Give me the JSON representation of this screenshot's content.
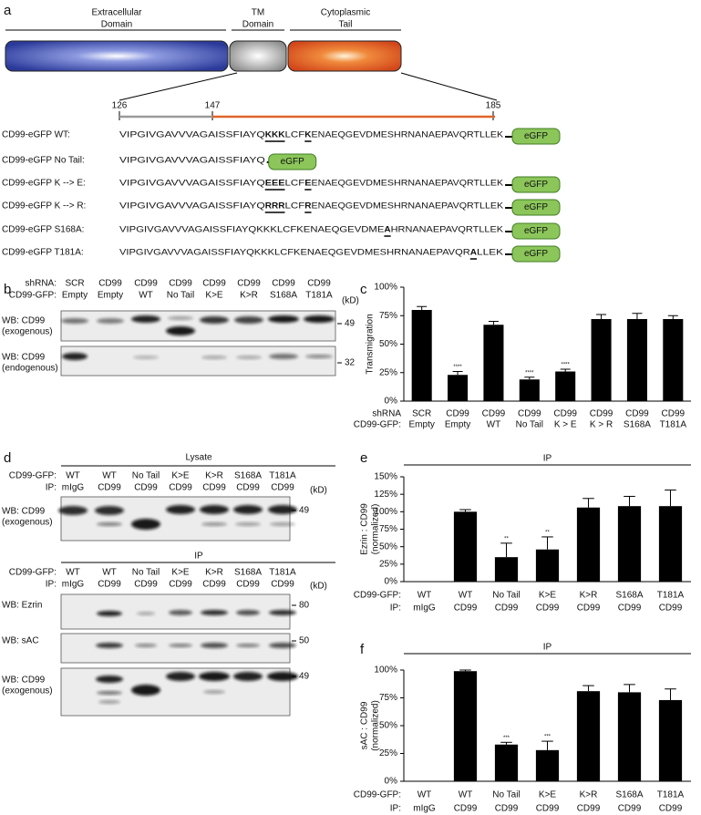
{
  "panel_a": {
    "letter": "a",
    "domains": [
      [
        "Extracellular",
        "Domain"
      ],
      [
        "TM",
        "Domain"
      ],
      [
        "Cytoplasmic",
        "Tail"
      ]
    ],
    "positions": [
      126,
      147,
      185
    ],
    "tag": "eGFP",
    "constructs": [
      {
        "label": "CD99-eGFP WT:",
        "segments": [
          {
            "text": "VIPGIVGAVVVAGAISSFIAYQ",
            "style": "plain"
          },
          {
            "text": "KKK",
            "style": "bold"
          },
          {
            "text": "LCF",
            "style": "plain"
          },
          {
            "text": "K",
            "style": "bold"
          },
          {
            "text": "ENAEQGEVDMESHRNANAEPAVQRTLLEK",
            "style": "plain"
          }
        ]
      },
      {
        "label": "CD99-eGFP No Tail:",
        "segments": [
          {
            "text": "VIPGIVGAVVVAGAISSFIAYQ",
            "style": "plain"
          }
        ]
      },
      {
        "label": "CD99-eGFP K --> E:",
        "segments": [
          {
            "text": "VIPGIVGAVVVAGAISSFIAYQ",
            "style": "plain"
          },
          {
            "text": "EEE",
            "style": "mutant"
          },
          {
            "text": "LCF",
            "style": "plain"
          },
          {
            "text": "E",
            "style": "mutant"
          },
          {
            "text": "ENAEQGEVDMESHRNANAEPAVQRTLLEK",
            "style": "plain"
          }
        ]
      },
      {
        "label": "CD99-eGFP K --> R:",
        "segments": [
          {
            "text": "VIPGIVGAVVVAGAISSFIAYQ",
            "style": "plain"
          },
          {
            "text": "RRR",
            "style": "mutant"
          },
          {
            "text": "LCF",
            "style": "plain"
          },
          {
            "text": "R",
            "style": "mutant"
          },
          {
            "text": "ENAEQGEVDMESHRNANAEPAVQRTLLEK",
            "style": "plain"
          }
        ]
      },
      {
        "label": "CD99-eGFP S168A:",
        "segments": [
          {
            "text": "VIPGIVGAVVVAGAISSFIAYQKKKLCFKENAEQGEVDME",
            "style": "plain"
          },
          {
            "text": "A",
            "style": "mutant"
          },
          {
            "text": "HRNANAEPAVQRTLLEK",
            "style": "plain"
          }
        ]
      },
      {
        "label": "CD99-eGFP T181A:",
        "segments": [
          {
            "text": "VIPGIVGAVVVAGAISSFIAYQKKKLCFKENAEQGEVDMESHRNANAEPAVQR",
            "style": "plain"
          },
          {
            "text": "A",
            "style": "mutant"
          },
          {
            "text": "LLEK",
            "style": "plain"
          }
        ]
      }
    ]
  },
  "panel_b": {
    "letter": "b",
    "row_labels": [
      "shRNA:",
      "CD99-GFP:"
    ],
    "lanes": [
      [
        "SCR",
        "Empty"
      ],
      [
        "CD99",
        "Empty"
      ],
      [
        "CD99",
        "WT"
      ],
      [
        "CD99",
        "No Tail"
      ],
      [
        "CD99",
        "K>E"
      ],
      [
        "CD99",
        "K>R"
      ],
      [
        "CD99",
        "S168A"
      ],
      [
        "CD99",
        "T181A"
      ]
    ],
    "marker_unit": "(kD)",
    "blots": [
      {
        "label": [
          "WB: CD99",
          "(exogenous)"
        ],
        "marker": 49
      },
      {
        "label": [
          "WB: CD99",
          "(endogenous)"
        ],
        "marker": 32
      }
    ]
  },
  "panel_d": {
    "letter": "d",
    "sections": [
      {
        "title": "Lysate",
        "row_labels": [
          "CD99-GFP:",
          "IP:"
        ],
        "marker_unit": "(kD)",
        "lanes": [
          [
            "WT",
            "mIgG"
          ],
          [
            "WT",
            "CD99"
          ],
          [
            "No Tail",
            "CD99"
          ],
          [
            "K>E",
            "CD99"
          ],
          [
            "K>R",
            "CD99"
          ],
          [
            "S168A",
            "CD99"
          ],
          [
            "T181A",
            "CD99"
          ]
        ],
        "blots": [
          {
            "label": [
              "WB: CD99",
              "(exogenous)"
            ],
            "marker": 49
          }
        ]
      },
      {
        "title": "IP",
        "row_labels": [
          "CD99-GFP:",
          "IP:"
        ],
        "marker_unit": "(kD)",
        "lanes": [
          [
            "WT",
            "mIgG"
          ],
          [
            "WT",
            "CD99"
          ],
          [
            "No Tail",
            "CD99"
          ],
          [
            "K>E",
            "CD99"
          ],
          [
            "K>R",
            "CD99"
          ],
          [
            "S168A",
            "CD99"
          ],
          [
            "T181A",
            "CD99"
          ]
        ],
        "blots": [
          {
            "label": [
              "WB: Ezrin"
            ],
            "marker": 80
          },
          {
            "label": [
              "WB: sAC"
            ],
            "marker": 50
          },
          {
            "label": [
              "WB: CD99",
              "(exogenous)"
            ],
            "marker": 49
          }
        ]
      }
    ]
  },
  "chart_data": [
    {
      "type": "bar",
      "panel_label": "c",
      "ylabel": [
        "Transmigration"
      ],
      "color": "#000000",
      "category_row_labels": [
        "shRNA",
        "CD99-GFP:"
      ],
      "categories": [
        [
          "SCR",
          "Empty"
        ],
        [
          "CD99",
          "Empty"
        ],
        [
          "CD99",
          "WT"
        ],
        [
          "CD99",
          "No Tail"
        ],
        [
          "CD99",
          "K > E"
        ],
        [
          "CD99",
          "K > R"
        ],
        [
          "CD99",
          "S168A"
        ],
        [
          "CD99",
          "T181A"
        ]
      ],
      "values": [
        80,
        23,
        67,
        19,
        26,
        72,
        72,
        72
      ],
      "errors": [
        3,
        3,
        3,
        2,
        2,
        4,
        5,
        3
      ],
      "significance": [
        null,
        "****",
        null,
        "****",
        "****",
        null,
        null,
        null
      ],
      "ylim": [
        0,
        100
      ],
      "yticks": [
        {
          "value": 0,
          "label": "0%"
        },
        {
          "value": 25,
          "label": "25%"
        },
        {
          "value": 50,
          "label": "50%"
        },
        {
          "value": 75,
          "label": "75%"
        },
        {
          "value": 100,
          "label": "100%"
        }
      ]
    },
    {
      "type": "bar",
      "panel_label": "e",
      "title": "IP",
      "ylabel": [
        "Ezrin : CD99",
        "(normalized)"
      ],
      "color": "#000000",
      "category_row_labels": [
        "CD99-GFP:",
        "IP:"
      ],
      "categories": [
        [
          "WT",
          "mIgG"
        ],
        [
          "WT",
          "CD99"
        ],
        [
          "No Tail",
          "CD99"
        ],
        [
          "K>E",
          "CD99"
        ],
        [
          "K>R",
          "CD99"
        ],
        [
          "S168A",
          "CD99"
        ],
        [
          "T181A",
          "CD99"
        ]
      ],
      "values": [
        0,
        100,
        35,
        46,
        106,
        108,
        108
      ],
      "errors": [
        0,
        3,
        20,
        18,
        13,
        14,
        23
      ],
      "significance": [
        null,
        null,
        "**",
        "**",
        null,
        null,
        null
      ],
      "ylim": [
        0,
        150
      ],
      "yticks": [
        {
          "value": 0,
          "label": "0%"
        },
        {
          "value": 25,
          "label": "25%"
        },
        {
          "value": 50,
          "label": "50%"
        },
        {
          "value": 75,
          "label": "75%"
        },
        {
          "value": 100,
          "label": "100%"
        },
        {
          "value": 125,
          "label": "125%"
        },
        {
          "value": 150,
          "label": "150%"
        }
      ]
    },
    {
      "type": "bar",
      "panel_label": "f",
      "title": "IP",
      "ylabel": [
        "sAC : CD99",
        "(normalized)"
      ],
      "color": "#000000",
      "category_row_labels": [
        "CD99-GFP:",
        "IP:"
      ],
      "categories": [
        [
          "WT",
          "mIgG"
        ],
        [
          "WT",
          "CD99"
        ],
        [
          "No Tail",
          "CD99"
        ],
        [
          "K>E",
          "CD99"
        ],
        [
          "K>R",
          "CD99"
        ],
        [
          "S168A",
          "CD99"
        ],
        [
          "T181A",
          "CD99"
        ]
      ],
      "values": [
        0,
        99,
        33,
        28,
        81,
        80,
        73
      ],
      "errors": [
        0,
        1,
        2,
        8,
        5,
        7,
        10
      ],
      "significance": [
        null,
        null,
        "***",
        "***",
        null,
        null,
        null
      ],
      "ylim": [
        0,
        100
      ],
      "yticks": [
        {
          "value": 0,
          "label": "0%"
        },
        {
          "value": 25,
          "label": "25%"
        },
        {
          "value": 50,
          "label": "50%"
        },
        {
          "value": 75,
          "label": "75%"
        },
        {
          "value": 100,
          "label": "100%"
        }
      ]
    }
  ]
}
